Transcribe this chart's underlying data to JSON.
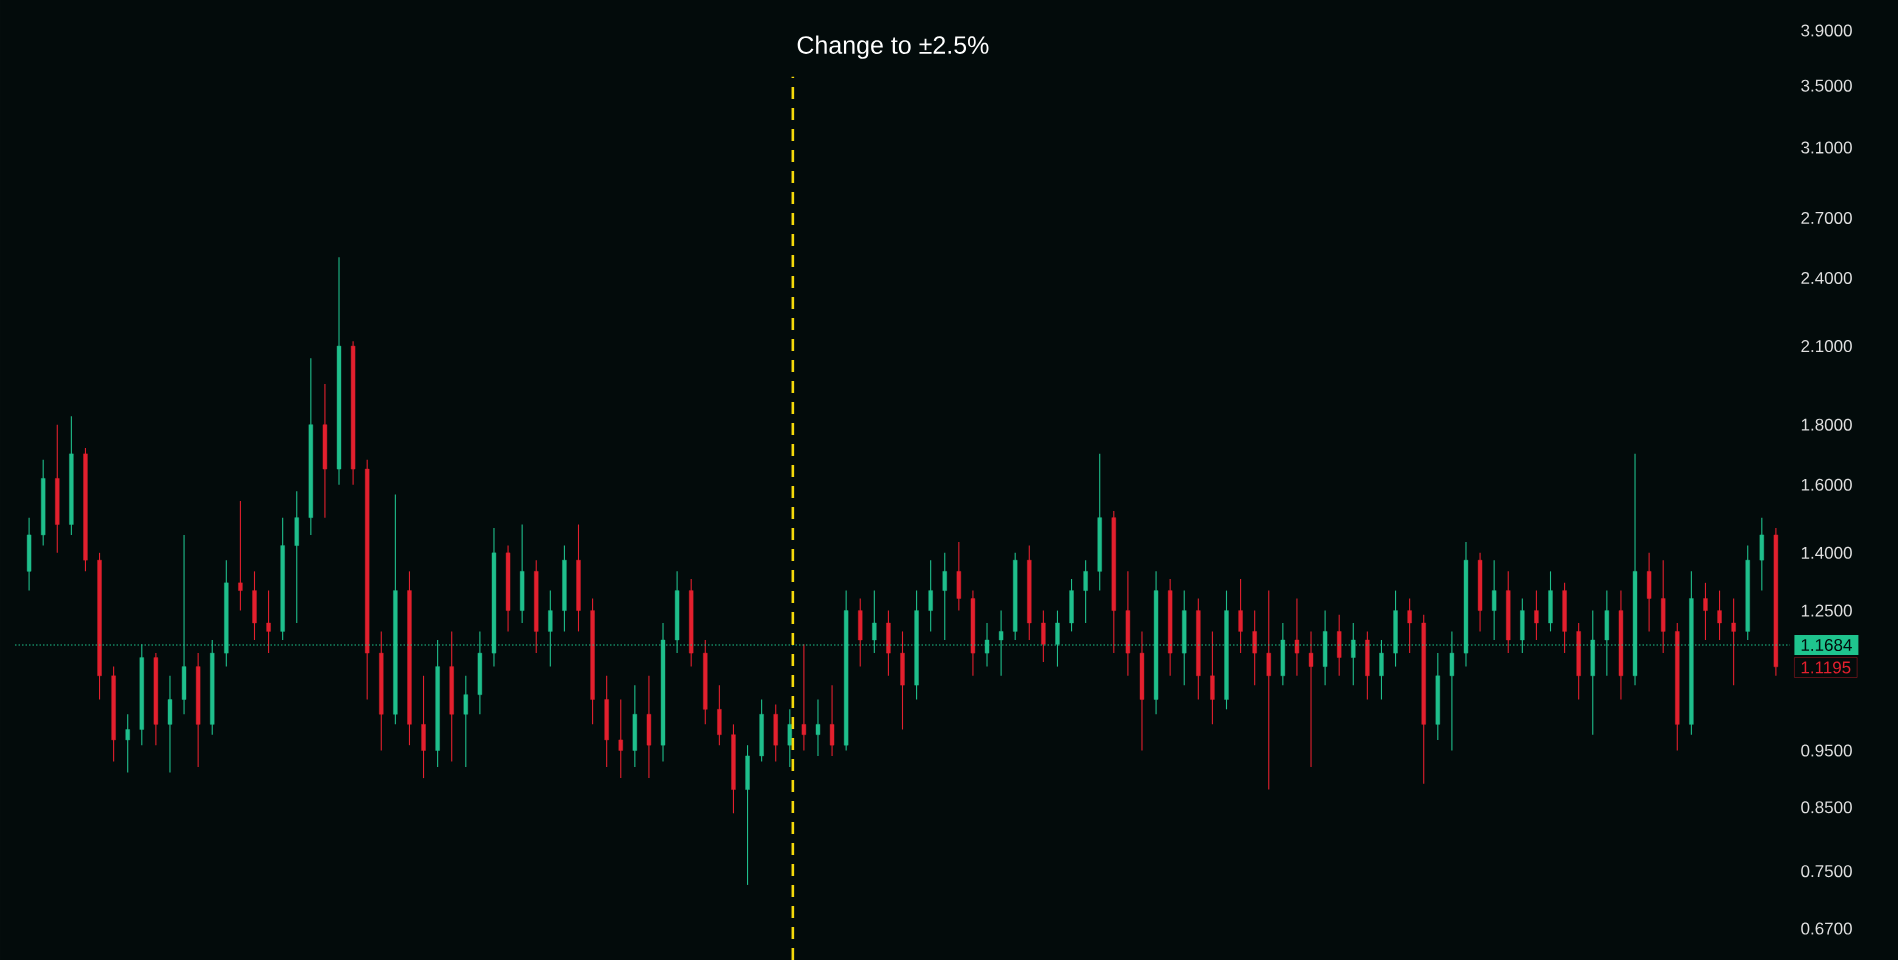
{
  "chart_data": {
    "type": "candlestick",
    "categories": [
      null,
      null,
      null,
      null,
      null,
      null,
      null,
      null,
      null,
      null,
      null,
      null,
      null,
      null,
      null,
      null,
      null,
      null,
      null,
      null,
      null,
      null,
      null,
      null,
      null,
      null,
      null,
      null,
      null,
      null,
      null,
      null,
      null,
      null,
      null,
      null,
      null,
      null,
      null,
      null,
      null,
      null,
      null,
      null,
      null,
      null,
      null,
      null,
      null,
      null,
      null,
      null,
      null,
      null,
      null,
      null,
      null,
      null,
      null,
      null,
      null,
      null,
      null,
      null,
      null,
      null,
      null,
      null,
      null,
      null,
      null,
      null,
      null,
      null,
      null,
      null,
      null,
      null,
      null,
      null,
      null,
      null,
      null,
      null,
      null,
      null,
      null,
      null,
      null,
      null,
      null,
      null,
      null,
      null,
      null,
      null,
      null,
      null,
      null,
      null,
      null,
      null,
      null,
      null,
      null,
      null,
      null,
      null,
      null,
      null,
      null,
      null,
      null,
      null,
      null,
      null,
      null,
      null,
      null,
      null,
      null,
      null,
      null,
      null,
      null
    ],
    "ohlc": [
      [
        1.35,
        1.5,
        1.3,
        1.45
      ],
      [
        1.45,
        1.68,
        1.42,
        1.62
      ],
      [
        1.62,
        1.8,
        1.4,
        1.48
      ],
      [
        1.48,
        1.83,
        1.45,
        1.7
      ],
      [
        1.7,
        1.72,
        1.35,
        1.38
      ],
      [
        1.38,
        1.4,
        1.05,
        1.1
      ],
      [
        1.1,
        1.12,
        0.93,
        0.97
      ],
      [
        0.97,
        1.02,
        0.91,
        0.99
      ],
      [
        0.99,
        1.17,
        0.96,
        1.14
      ],
      [
        1.14,
        1.15,
        0.96,
        1.0
      ],
      [
        1.0,
        1.1,
        0.91,
        1.05
      ],
      [
        1.05,
        1.45,
        1.02,
        1.12
      ],
      [
        1.12,
        1.15,
        0.92,
        1.0
      ],
      [
        1.0,
        1.18,
        0.98,
        1.15
      ],
      [
        1.15,
        1.38,
        1.12,
        1.32
      ],
      [
        1.32,
        1.55,
        1.25,
        1.3
      ],
      [
        1.3,
        1.35,
        1.18,
        1.22
      ],
      [
        1.22,
        1.3,
        1.15,
        1.2
      ],
      [
        1.2,
        1.5,
        1.18,
        1.42
      ],
      [
        1.42,
        1.58,
        1.22,
        1.5
      ],
      [
        1.5,
        2.05,
        1.45,
        1.8
      ],
      [
        1.8,
        1.95,
        1.5,
        1.65
      ],
      [
        1.65,
        2.5,
        1.6,
        2.1
      ],
      [
        2.1,
        2.12,
        1.6,
        1.65
      ],
      [
        1.65,
        1.68,
        1.05,
        1.15
      ],
      [
        1.15,
        1.2,
        0.95,
        1.02
      ],
      [
        1.02,
        1.57,
        1.0,
        1.3
      ],
      [
        1.3,
        1.35,
        0.96,
        1.0
      ],
      [
        1.0,
        1.1,
        0.9,
        0.95
      ],
      [
        0.95,
        1.18,
        0.92,
        1.12
      ],
      [
        1.12,
        1.2,
        0.93,
        1.02
      ],
      [
        1.02,
        1.1,
        0.92,
        1.06
      ],
      [
        1.06,
        1.2,
        1.02,
        1.15
      ],
      [
        1.15,
        1.47,
        1.12,
        1.4
      ],
      [
        1.4,
        1.42,
        1.2,
        1.25
      ],
      [
        1.25,
        1.48,
        1.22,
        1.35
      ],
      [
        1.35,
        1.38,
        1.15,
        1.2
      ],
      [
        1.2,
        1.3,
        1.12,
        1.25
      ],
      [
        1.25,
        1.42,
        1.2,
        1.38
      ],
      [
        1.38,
        1.48,
        1.2,
        1.25
      ],
      [
        1.25,
        1.28,
        1.0,
        1.05
      ],
      [
        1.05,
        1.1,
        0.92,
        0.97
      ],
      [
        0.97,
        1.05,
        0.9,
        0.95
      ],
      [
        0.95,
        1.08,
        0.92,
        1.02
      ],
      [
        1.02,
        1.1,
        0.9,
        0.96
      ],
      [
        0.96,
        1.22,
        0.93,
        1.18
      ],
      [
        1.18,
        1.35,
        1.15,
        1.3
      ],
      [
        1.3,
        1.33,
        1.12,
        1.15
      ],
      [
        1.15,
        1.18,
        1.0,
        1.03
      ],
      [
        1.03,
        1.08,
        0.96,
        0.98
      ],
      [
        0.98,
        1.0,
        0.84,
        0.88
      ],
      [
        0.88,
        0.96,
        0.73,
        0.94
      ],
      [
        0.94,
        1.05,
        0.93,
        1.02
      ],
      [
        1.02,
        1.04,
        0.93,
        0.96
      ],
      [
        0.96,
        1.03,
        0.92,
        1.0
      ],
      [
        1.0,
        1.17,
        0.95,
        0.98
      ],
      [
        0.98,
        1.05,
        0.94,
        1.0
      ],
      [
        1.0,
        1.08,
        0.94,
        0.96
      ],
      [
        0.96,
        1.3,
        0.95,
        1.25
      ],
      [
        1.25,
        1.28,
        1.12,
        1.18
      ],
      [
        1.18,
        1.3,
        1.15,
        1.22
      ],
      [
        1.22,
        1.25,
        1.1,
        1.15
      ],
      [
        1.15,
        1.2,
        0.99,
        1.08
      ],
      [
        1.08,
        1.3,
        1.05,
        1.25
      ],
      [
        1.25,
        1.38,
        1.2,
        1.3
      ],
      [
        1.3,
        1.4,
        1.18,
        1.35
      ],
      [
        1.35,
        1.43,
        1.25,
        1.28
      ],
      [
        1.28,
        1.3,
        1.1,
        1.15
      ],
      [
        1.15,
        1.22,
        1.12,
        1.18
      ],
      [
        1.18,
        1.25,
        1.1,
        1.2
      ],
      [
        1.2,
        1.4,
        1.18,
        1.38
      ],
      [
        1.38,
        1.42,
        1.18,
        1.22
      ],
      [
        1.22,
        1.25,
        1.13,
        1.17
      ],
      [
        1.17,
        1.25,
        1.12,
        1.22
      ],
      [
        1.22,
        1.33,
        1.2,
        1.3
      ],
      [
        1.3,
        1.38,
        1.22,
        1.35
      ],
      [
        1.35,
        1.7,
        1.3,
        1.5
      ],
      [
        1.5,
        1.52,
        1.15,
        1.25
      ],
      [
        1.25,
        1.35,
        1.1,
        1.15
      ],
      [
        1.15,
        1.2,
        0.95,
        1.05
      ],
      [
        1.05,
        1.35,
        1.02,
        1.3
      ],
      [
        1.3,
        1.33,
        1.1,
        1.15
      ],
      [
        1.15,
        1.3,
        1.08,
        1.25
      ],
      [
        1.25,
        1.28,
        1.05,
        1.1
      ],
      [
        1.1,
        1.2,
        1.0,
        1.05
      ],
      [
        1.05,
        1.3,
        1.03,
        1.25
      ],
      [
        1.25,
        1.33,
        1.15,
        1.2
      ],
      [
        1.2,
        1.25,
        1.08,
        1.15
      ],
      [
        1.15,
        1.3,
        0.88,
        1.1
      ],
      [
        1.1,
        1.22,
        1.08,
        1.18
      ],
      [
        1.18,
        1.28,
        1.1,
        1.15
      ],
      [
        1.15,
        1.2,
        0.92,
        1.12
      ],
      [
        1.12,
        1.25,
        1.08,
        1.2
      ],
      [
        1.2,
        1.24,
        1.1,
        1.14
      ],
      [
        1.14,
        1.22,
        1.08,
        1.18
      ],
      [
        1.18,
        1.2,
        1.05,
        1.1
      ],
      [
        1.1,
        1.18,
        1.05,
        1.15
      ],
      [
        1.15,
        1.3,
        1.12,
        1.25
      ],
      [
        1.25,
        1.28,
        1.15,
        1.22
      ],
      [
        1.22,
        1.24,
        0.89,
        1.0
      ],
      [
        1.0,
        1.15,
        0.97,
        1.1
      ],
      [
        1.1,
        1.2,
        0.95,
        1.15
      ],
      [
        1.15,
        1.43,
        1.12,
        1.38
      ],
      [
        1.38,
        1.4,
        1.2,
        1.25
      ],
      [
        1.25,
        1.38,
        1.18,
        1.3
      ],
      [
        1.3,
        1.35,
        1.15,
        1.18
      ],
      [
        1.18,
        1.28,
        1.15,
        1.25
      ],
      [
        1.25,
        1.3,
        1.18,
        1.22
      ],
      [
        1.22,
        1.35,
        1.2,
        1.3
      ],
      [
        1.3,
        1.32,
        1.15,
        1.2
      ],
      [
        1.2,
        1.22,
        1.05,
        1.1
      ],
      [
        1.1,
        1.25,
        0.98,
        1.18
      ],
      [
        1.18,
        1.3,
        1.1,
        1.25
      ],
      [
        1.25,
        1.3,
        1.05,
        1.1
      ],
      [
        1.1,
        1.7,
        1.08,
        1.35
      ],
      [
        1.35,
        1.4,
        1.2,
        1.28
      ],
      [
        1.28,
        1.38,
        1.15,
        1.2
      ],
      [
        1.2,
        1.22,
        0.95,
        1.0
      ],
      [
        1.0,
        1.35,
        0.98,
        1.28
      ],
      [
        1.28,
        1.32,
        1.18,
        1.25
      ],
      [
        1.25,
        1.3,
        1.18,
        1.22
      ],
      [
        1.22,
        1.28,
        1.08,
        1.2
      ],
      [
        1.2,
        1.42,
        1.18,
        1.38
      ],
      [
        1.38,
        1.5,
        1.3,
        1.45
      ],
      [
        1.45,
        1.47,
        1.1,
        1.1195
      ]
    ],
    "log": true,
    "ylim": [
      0.63,
      4.14
    ],
    "yticks": [
      {
        "value": 0.67,
        "label": "0.6700"
      },
      {
        "value": 0.75,
        "label": "0.7500"
      },
      {
        "value": 0.85,
        "label": "0.8500"
      },
      {
        "value": 0.95,
        "label": "0.9500"
      },
      {
        "value": 1.25,
        "label": "1.2500"
      },
      {
        "value": 1.4,
        "label": "1.4000"
      },
      {
        "value": 1.6,
        "label": "1.6000"
      },
      {
        "value": 1.8,
        "label": "1.8000"
      },
      {
        "value": 2.1,
        "label": "2.1000"
      },
      {
        "value": 2.4,
        "label": "2.4000"
      },
      {
        "value": 2.7,
        "label": "2.7000"
      },
      {
        "value": 3.1,
        "label": "3.1000"
      },
      {
        "value": 3.5,
        "label": "3.5000"
      },
      {
        "value": 3.9,
        "label": "3.9000"
      }
    ],
    "tick_labels": "y",
    "ref_lines": [
      {
        "axis": "y",
        "value": 1.1684,
        "label": "1.1684",
        "color": "#1fc48e",
        "line_style": "dotted"
      }
    ],
    "annotations": [
      "Change to ±2.5%",
      "1.1195"
    ]
  }
}
